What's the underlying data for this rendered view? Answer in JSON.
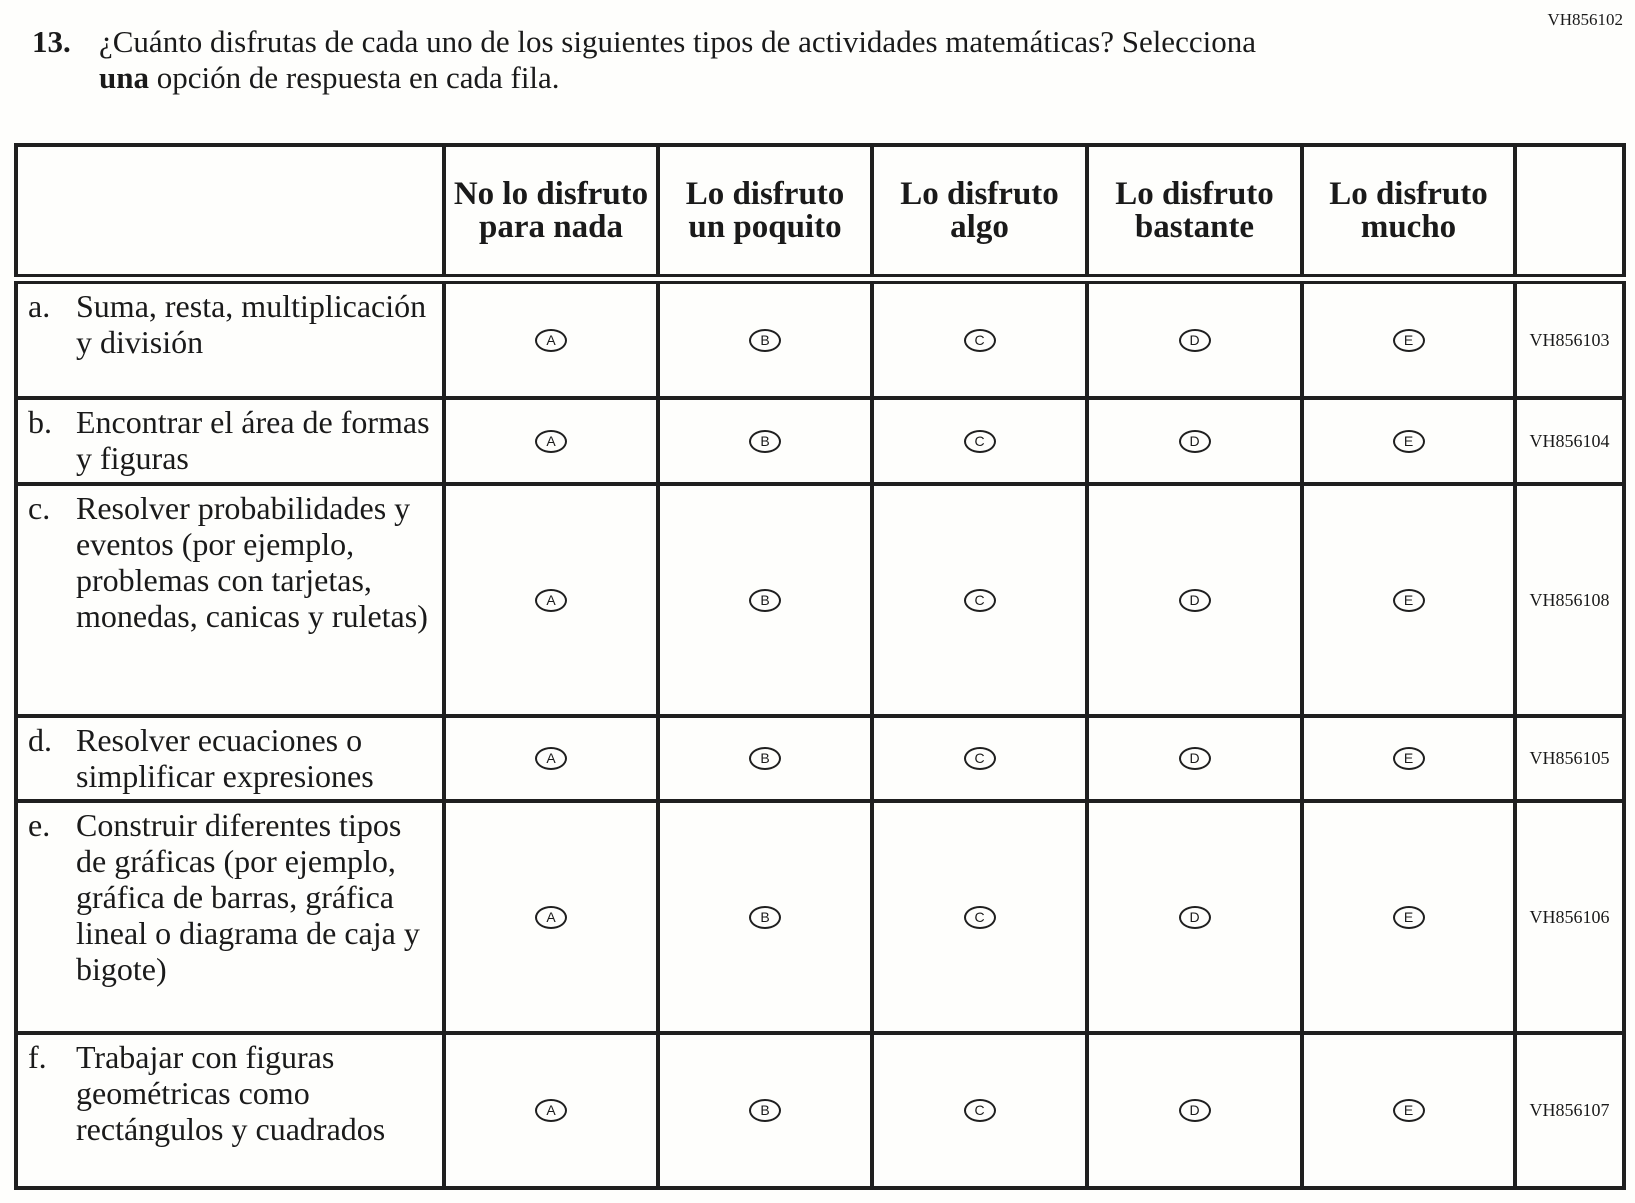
{
  "page_code": "VH856102",
  "question": {
    "number": "13.",
    "text_before": "¿Cuánto disfrutas de cada uno de los siguientes tipos de actividades matemáticas? Selecciona ",
    "text_bold": "una",
    "text_after": " opción de respuesta en cada fila."
  },
  "columns": [
    "No lo disfruto para nada",
    "Lo disfruto un poquito",
    "Lo disfruto algo",
    "Lo disfruto bastante",
    "Lo disfruto mucho"
  ],
  "options": [
    "A",
    "B",
    "C",
    "D",
    "E"
  ],
  "rows": [
    {
      "letter": "a.",
      "text": "Suma, resta, multiplicación y división",
      "code": "VH856103",
      "h": 119
    },
    {
      "letter": "b.",
      "text": "Encontrar el área de formas y figuras",
      "code": "VH856104",
      "h": 86
    },
    {
      "letter": "c.",
      "text": "Resolver probabilidades y eventos (por ejemplo, problemas con tarjetas, monedas, canicas y ruletas)",
      "code": "VH856108",
      "h": 232
    },
    {
      "letter": "d.",
      "text": "Resolver ecuaciones o simplificar expresiones",
      "code": "VH856105",
      "h": 85
    },
    {
      "letter": "e.",
      "text": "Construir diferentes tipos de gráficas (por ejemplo, gráfica de barras, gráfica lineal o diagrama de caja y bigote)",
      "code": "VH856106",
      "h": 232
    },
    {
      "letter": "f.",
      "text": "Trabajar con figuras geométricas como rectángulos y cuadrados",
      "code": "VH856107",
      "h": 155
    }
  ]
}
